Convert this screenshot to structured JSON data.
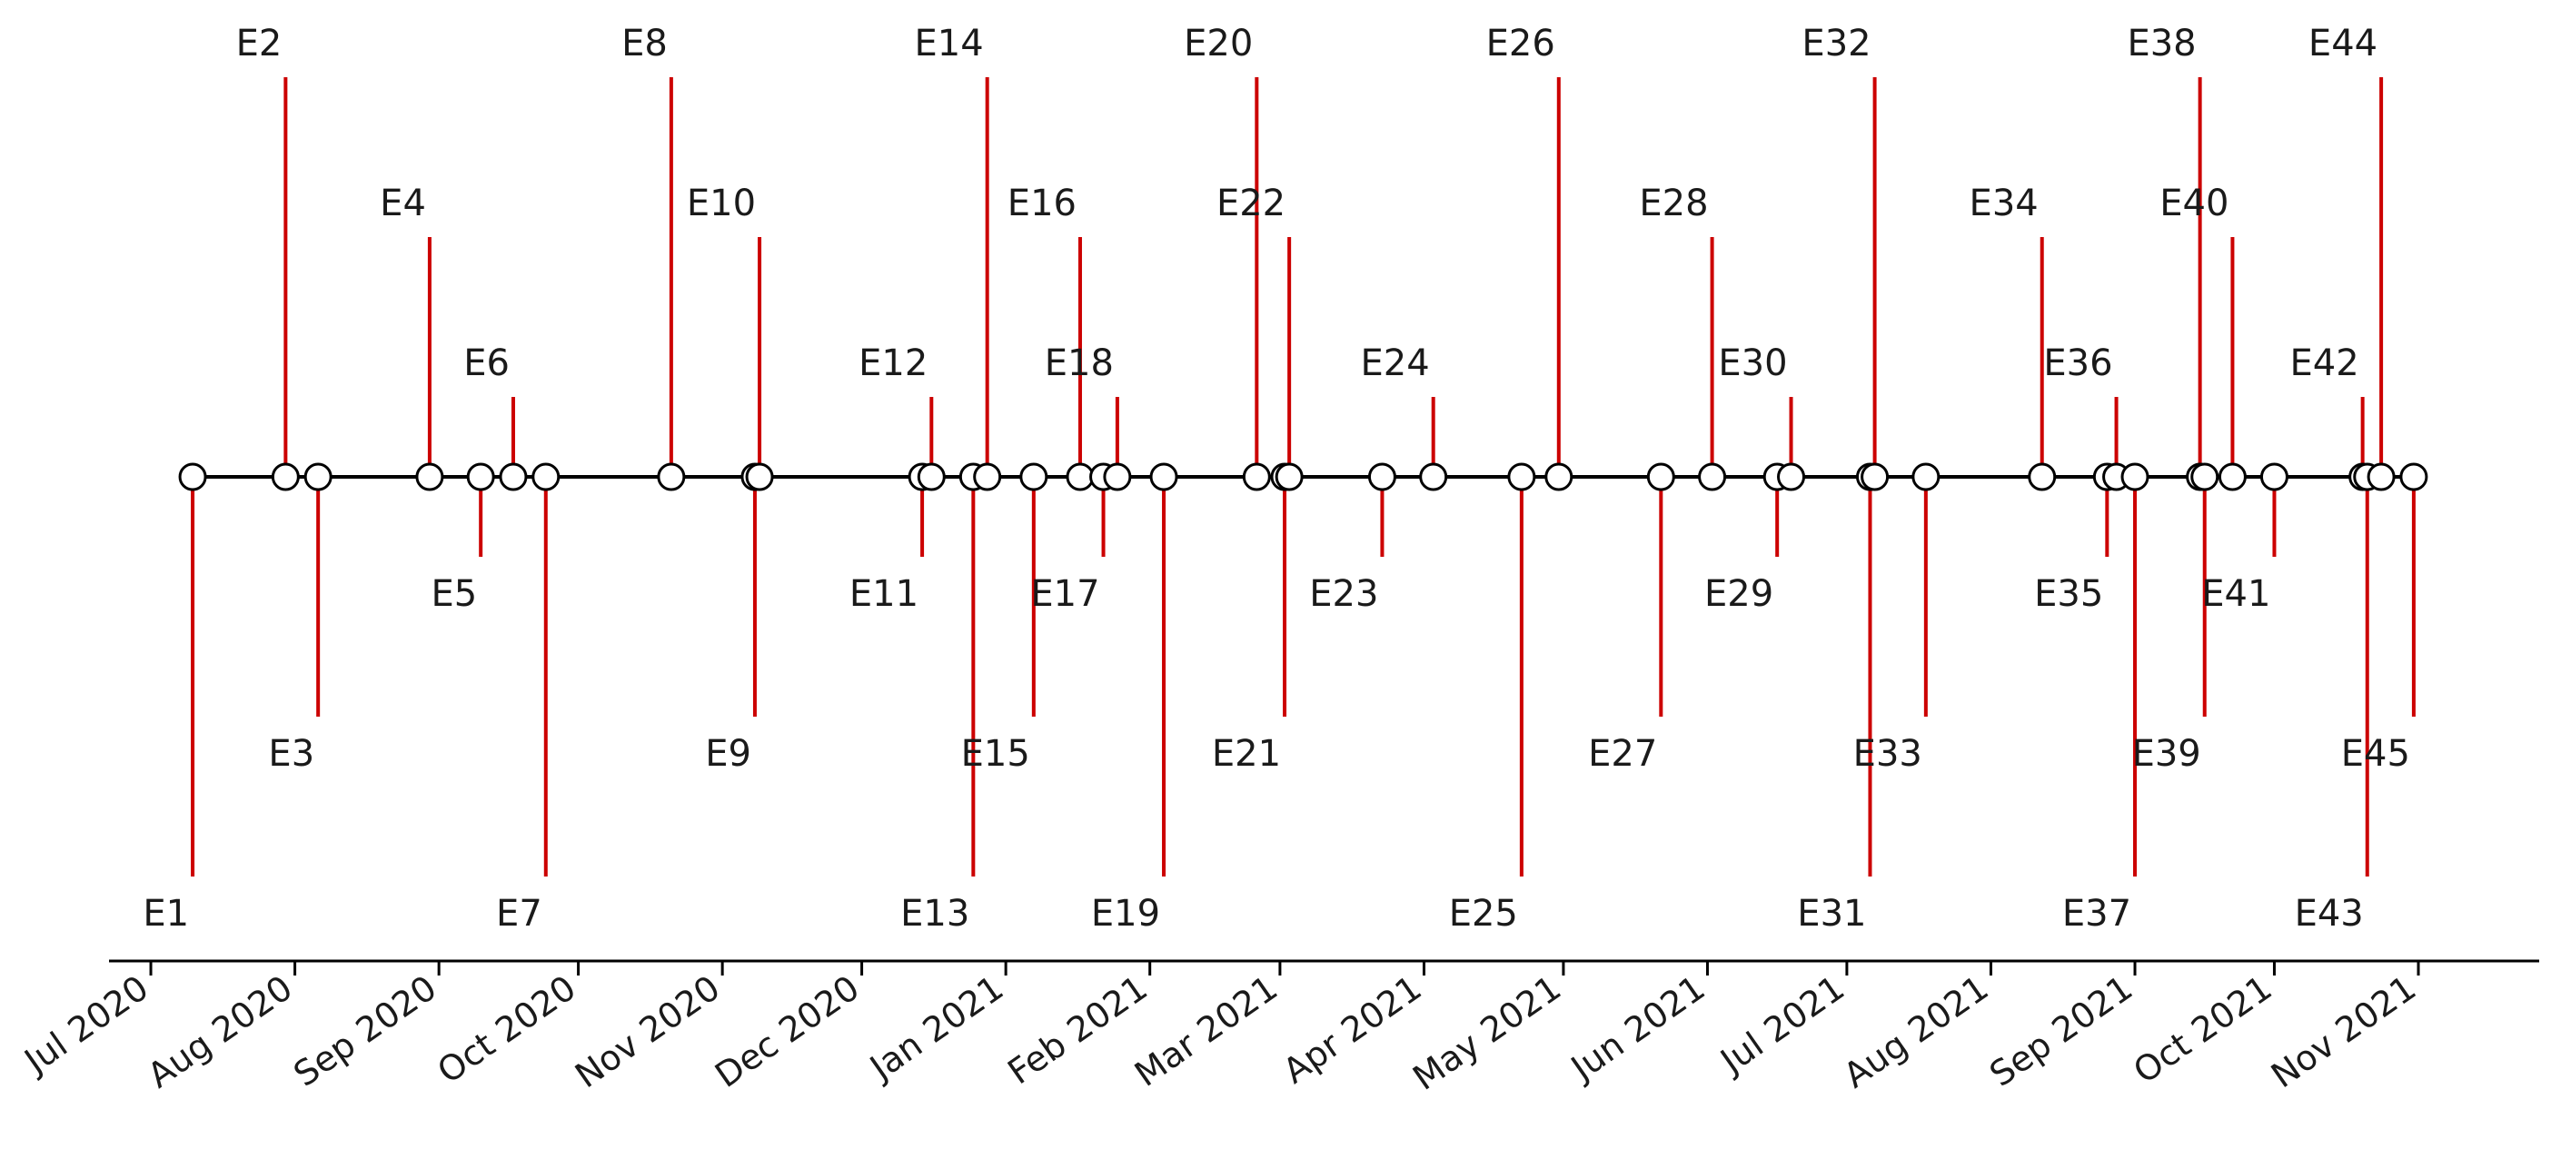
{
  "chart_data": {
    "type": "timeline",
    "title": "",
    "xlabel": "",
    "ylabel": "",
    "x_range": [
      "2020-06-22",
      "2021-11-27"
    ],
    "x_ticks": [
      {
        "date": "2020-07-01",
        "label": "Jul 2020"
      },
      {
        "date": "2020-08-01",
        "label": "Aug 2020"
      },
      {
        "date": "2020-09-01",
        "label": "Sep 2020"
      },
      {
        "date": "2020-10-01",
        "label": "Oct 2020"
      },
      {
        "date": "2020-11-01",
        "label": "Nov 2020"
      },
      {
        "date": "2020-12-01",
        "label": "Dec 2020"
      },
      {
        "date": "2021-01-01",
        "label": "Jan 2021"
      },
      {
        "date": "2021-02-01",
        "label": "Feb 2021"
      },
      {
        "date": "2021-03-01",
        "label": "Mar 2021"
      },
      {
        "date": "2021-04-01",
        "label": "Apr 2021"
      },
      {
        "date": "2021-05-01",
        "label": "May 2021"
      },
      {
        "date": "2021-06-01",
        "label": "Jun 2021"
      },
      {
        "date": "2021-07-01",
        "label": "Jul 2021"
      },
      {
        "date": "2021-08-01",
        "label": "Aug 2021"
      },
      {
        "date": "2021-09-01",
        "label": "Sep 2021"
      },
      {
        "date": "2021-10-01",
        "label": "Oct 2021"
      },
      {
        "date": "2021-11-01",
        "label": "Nov 2021"
      }
    ],
    "level_pattern": [
      -5,
      5,
      -3,
      3,
      -1,
      1
    ],
    "stem_color": "#cc0000",
    "baseline_color": "#000000",
    "marker_fill": "#ffffff",
    "marker_edge": "#000000",
    "grid": false,
    "events": [
      {
        "label": "E1",
        "date": "2020-07-10"
      },
      {
        "label": "E2",
        "date": "2020-07-30"
      },
      {
        "label": "E3",
        "date": "2020-08-06"
      },
      {
        "label": "E4",
        "date": "2020-08-30"
      },
      {
        "label": "E5",
        "date": "2020-09-10"
      },
      {
        "label": "E6",
        "date": "2020-09-17"
      },
      {
        "label": "E7",
        "date": "2020-09-24"
      },
      {
        "label": "E8",
        "date": "2020-10-21"
      },
      {
        "label": "E9",
        "date": "2020-11-08"
      },
      {
        "label": "E10",
        "date": "2020-11-09"
      },
      {
        "label": "E11",
        "date": "2020-12-14"
      },
      {
        "label": "E12",
        "date": "2020-12-16"
      },
      {
        "label": "E13",
        "date": "2020-12-25"
      },
      {
        "label": "E14",
        "date": "2020-12-28"
      },
      {
        "label": "E15",
        "date": "2021-01-07"
      },
      {
        "label": "E16",
        "date": "2021-01-17"
      },
      {
        "label": "E17",
        "date": "2021-01-22"
      },
      {
        "label": "E18",
        "date": "2021-01-25"
      },
      {
        "label": "E19",
        "date": "2021-02-04"
      },
      {
        "label": "E20",
        "date": "2021-02-24"
      },
      {
        "label": "E21",
        "date": "2021-03-02"
      },
      {
        "label": "E22",
        "date": "2021-03-03"
      },
      {
        "label": "E23",
        "date": "2021-03-23"
      },
      {
        "label": "E24",
        "date": "2021-04-03"
      },
      {
        "label": "E25",
        "date": "2021-04-22"
      },
      {
        "label": "E26",
        "date": "2021-04-30"
      },
      {
        "label": "E27",
        "date": "2021-05-22"
      },
      {
        "label": "E28",
        "date": "2021-06-02"
      },
      {
        "label": "E29",
        "date": "2021-06-16"
      },
      {
        "label": "E30",
        "date": "2021-06-19"
      },
      {
        "label": "E31",
        "date": "2021-07-06"
      },
      {
        "label": "E32",
        "date": "2021-07-07"
      },
      {
        "label": "E33",
        "date": "2021-07-18"
      },
      {
        "label": "E34",
        "date": "2021-08-12"
      },
      {
        "label": "E35",
        "date": "2021-08-26"
      },
      {
        "label": "E36",
        "date": "2021-08-28"
      },
      {
        "label": "E37",
        "date": "2021-09-01"
      },
      {
        "label": "E38",
        "date": "2021-09-15"
      },
      {
        "label": "E39",
        "date": "2021-09-16"
      },
      {
        "label": "E40",
        "date": "2021-09-22"
      },
      {
        "label": "E41",
        "date": "2021-10-01"
      },
      {
        "label": "E42",
        "date": "2021-10-20"
      },
      {
        "label": "E43",
        "date": "2021-10-21"
      },
      {
        "label": "E44",
        "date": "2021-10-24"
      },
      {
        "label": "E45",
        "date": "2021-10-31"
      }
    ]
  }
}
